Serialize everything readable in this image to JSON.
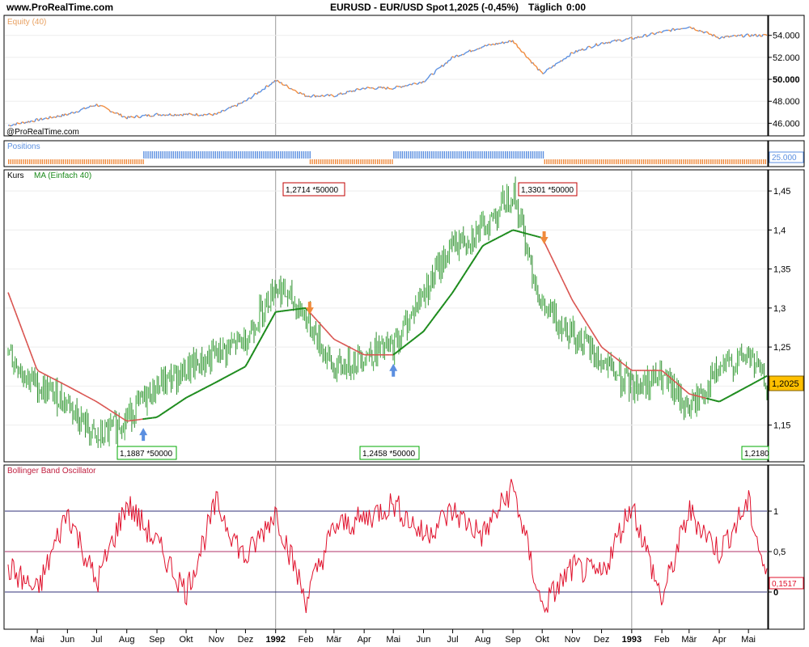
{
  "header": {
    "site": "www.ProRealTime.com",
    "instrument": "EURUSD - EUR/USD Spot",
    "price_change": "1,2025 (-0,45%)",
    "period": "Täglich",
    "time": "0:00"
  },
  "panels": {
    "equity": {
      "label": "Equity (40)",
      "watermark": "@ProRealTime.com"
    },
    "positions": {
      "label": "Positions",
      "value": "25.000"
    },
    "price": {
      "label": "Kurs",
      "ma_label": "MA (Einfach 40)",
      "last_price": "1,2025"
    },
    "bbo": {
      "label": "Bollinger Band Oscillator",
      "last_value": "0,1517"
    }
  },
  "colors": {
    "equity_up": "#5b8fe0",
    "equity_down": "#f08a3c",
    "candle_up": "#3faa3f",
    "candle_down": "#2e8b2e",
    "ma_long": "#1a8a1a",
    "ma_short": "#d9534f",
    "oscillator": "#e0102b",
    "buy_arrow": "#5b8fe0",
    "sell_arrow": "#f08a3c",
    "last_price_bg": "#ffc000"
  },
  "annotations": [
    {
      "text": "1,2714 *50000",
      "kind": "high"
    },
    {
      "text": "1,3301 *50000",
      "kind": "high"
    },
    {
      "text": "1,1887 *50000",
      "kind": "low"
    },
    {
      "text": "1,2458 *50000",
      "kind": "low"
    },
    {
      "text": "1,2180",
      "kind": "low"
    }
  ],
  "chart_data": [
    {
      "type": "line",
      "title": "Equity (40)",
      "x": [
        "1991-04-01",
        "1991-05-01",
        "1991-06-01",
        "1991-07-01",
        "1991-08-01",
        "1991-09-01",
        "1991-10-01",
        "1991-11-01",
        "1991-12-01",
        "1992-01-01",
        "1992-02-01",
        "1992-03-01",
        "1992-04-01",
        "1992-05-01",
        "1992-06-01",
        "1992-07-01",
        "1992-08-01",
        "1992-09-01",
        "1992-10-01",
        "1992-11-01",
        "1992-12-01",
        "1993-01-01",
        "1993-02-01",
        "1993-03-01",
        "1993-04-01",
        "1993-05-01"
      ],
      "values": [
        45800,
        46300,
        46800,
        47700,
        46500,
        46800,
        46800,
        46800,
        48000,
        49900,
        48500,
        48500,
        49200,
        49200,
        49800,
        52000,
        53000,
        53500,
        50500,
        52400,
        53300,
        53700,
        54300,
        54800,
        53800,
        54000
      ],
      "yticks": [
        "46.000",
        "48.000",
        "50.000",
        "52.000",
        "54.000"
      ],
      "ylim": [
        45000,
        55600
      ]
    },
    {
      "type": "bar",
      "title": "Positions",
      "segments": [
        {
          "from": "1991-04-01",
          "to": "1991-08-18",
          "side": "short"
        },
        {
          "from": "1991-08-18",
          "to": "1992-02-05",
          "side": "long"
        },
        {
          "from": "1992-02-05",
          "to": "1992-05-01",
          "side": "short"
        },
        {
          "from": "1992-05-01",
          "to": "1992-10-03",
          "side": "long"
        },
        {
          "from": "1992-10-03",
          "to": "1993-05-20",
          "side": "short"
        }
      ],
      "size": 25000
    },
    {
      "type": "line",
      "title": "Kurs",
      "series": [
        {
          "name": "Kurs",
          "x": [
            "1991-04-01",
            "1991-05-01",
            "1991-06-01",
            "1991-07-01",
            "1991-08-01",
            "1991-09-01",
            "1991-10-01",
            "1991-11-01",
            "1991-12-01",
            "1992-01-01",
            "1992-02-01",
            "1992-03-01",
            "1992-04-01",
            "1992-05-01",
            "1992-06-01",
            "1992-07-01",
            "1992-08-01",
            "1992-09-01",
            "1992-10-01",
            "1992-11-01",
            "1992-12-01",
            "1993-01-01",
            "1993-02-01",
            "1993-03-01",
            "1993-04-01",
            "1993-05-01",
            "1993-05-20"
          ],
          "values": [
            1.24,
            1.2,
            1.18,
            1.13,
            1.16,
            1.2,
            1.22,
            1.24,
            1.26,
            1.33,
            1.29,
            1.22,
            1.24,
            1.25,
            1.32,
            1.38,
            1.4,
            1.45,
            1.3,
            1.27,
            1.23,
            1.2,
            1.21,
            1.17,
            1.22,
            1.24,
            1.2025
          ]
        },
        {
          "name": "MA (Einfach 40)",
          "x": [
            "1991-04-01",
            "1991-05-01",
            "1991-06-01",
            "1991-07-01",
            "1991-08-01",
            "1991-09-01",
            "1991-10-01",
            "1991-11-01",
            "1991-12-01",
            "1992-01-01",
            "1992-02-01",
            "1992-03-01",
            "1992-04-01",
            "1992-05-01",
            "1992-06-01",
            "1992-07-01",
            "1992-08-01",
            "1992-09-01",
            "1992-10-01",
            "1992-11-01",
            "1992-12-01",
            "1993-01-01",
            "1993-02-01",
            "1993-03-01",
            "1993-04-01",
            "1993-05-01",
            "1993-05-20"
          ],
          "values": [
            1.32,
            1.22,
            1.2,
            1.18,
            1.155,
            1.16,
            1.185,
            1.205,
            1.225,
            1.295,
            1.3,
            1.26,
            1.24,
            1.24,
            1.27,
            1.32,
            1.38,
            1.4,
            1.39,
            1.31,
            1.25,
            1.22,
            1.22,
            1.19,
            1.18,
            1.2,
            1.213
          ]
        }
      ],
      "signals": [
        {
          "date": "1991-08-18",
          "type": "buy"
        },
        {
          "date": "1992-02-05",
          "type": "sell"
        },
        {
          "date": "1992-05-01",
          "type": "buy"
        },
        {
          "date": "1992-10-03",
          "type": "sell"
        }
      ],
      "yticks": [
        "1,15",
        "1,2",
        "1,25",
        "1,3",
        "1,35",
        "1,4",
        "1,45"
      ],
      "ylim": [
        1.105,
        1.475
      ]
    },
    {
      "type": "line",
      "title": "Bollinger Band Oscillator",
      "x": [
        "1991-04-01",
        "1991-05-01",
        "1991-06-01",
        "1991-07-01",
        "1991-08-01",
        "1991-09-01",
        "1991-10-01",
        "1991-11-01",
        "1991-12-01",
        "1992-01-01",
        "1992-02-01",
        "1992-03-01",
        "1992-04-01",
        "1992-05-01",
        "1992-06-01",
        "1992-07-01",
        "1992-08-01",
        "1992-09-01",
        "1992-10-01",
        "1992-11-01",
        "1992-12-01",
        "1993-01-01",
        "1993-02-01",
        "1993-03-01",
        "1993-04-01",
        "1993-05-01",
        "1993-05-20"
      ],
      "values": [
        0.3,
        0.0,
        1.0,
        0.1,
        1.1,
        0.6,
        0.0,
        1.1,
        0.4,
        1.0,
        -0.1,
        0.8,
        0.9,
        1.1,
        0.7,
        1.0,
        0.7,
        1.3,
        -0.2,
        0.3,
        0.2,
        1.1,
        -0.1,
        1.0,
        0.5,
        1.1,
        0.15
      ],
      "yticks": [
        "0",
        "0,5",
        "1"
      ],
      "reference_lines": [
        0,
        0.5,
        1
      ],
      "ylim": [
        -0.38,
        1.42
      ]
    }
  ],
  "x_axis": {
    "labels": [
      "Mai",
      "Jun",
      "Jul",
      "Aug",
      "Sep",
      "Okt",
      "Nov",
      "Dez",
      "1992",
      "Feb",
      "Mär",
      "Apr",
      "Mai",
      "Jun",
      "Jul",
      "Aug",
      "Sep",
      "Okt",
      "Nov",
      "Dez",
      "1993",
      "Feb",
      "Mär",
      "Apr",
      "Mai"
    ],
    "start": "1991-04-01",
    "end": "1993-05-20"
  }
}
